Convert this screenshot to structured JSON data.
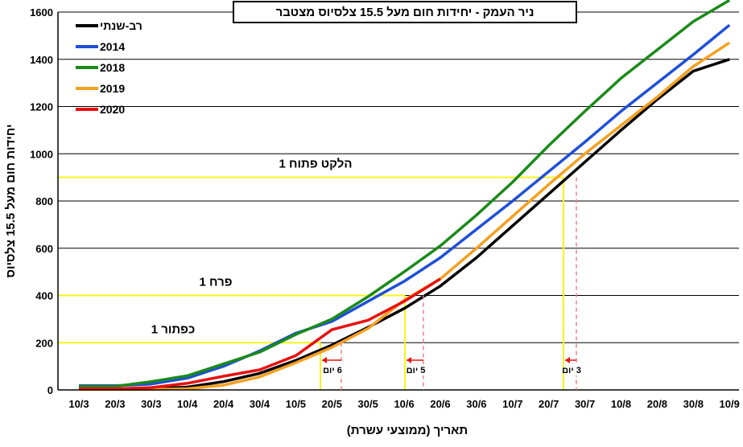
{
  "chart_data": {
    "type": "line",
    "title": "ניר העמק - יחידות חום מעל 15.5 צלסיוס מצטבר",
    "xlabel": "תאריך (ממוצעי עשרת)",
    "ylabel": "יחידות חום מעל 15.5 צלסיוס",
    "ylim": [
      0,
      1600
    ],
    "yticks": [
      0,
      200,
      400,
      600,
      800,
      1000,
      1200,
      1400,
      1600
    ],
    "categories": [
      "10/3",
      "20/3",
      "30/3",
      "10/4",
      "20/4",
      "30/4",
      "10/5",
      "20/5",
      "30/5",
      "10/6",
      "20/6",
      "30/6",
      "10/7",
      "20/7",
      "30/7",
      "10/8",
      "20/8",
      "30/8",
      "10/9"
    ],
    "grid": "horizontal",
    "legend": "top-left",
    "series": [
      {
        "name": "רב-שנתי",
        "color": "#000000",
        "values": [
          5,
          5,
          5,
          12,
          35,
          70,
          125,
          190,
          265,
          345,
          440,
          560,
          695,
          830,
          965,
          1100,
          1230,
          1350,
          1400
        ]
      },
      {
        "name": "2014",
        "color": "#1F4FD8",
        "values": [
          18,
          18,
          25,
          50,
          100,
          165,
          240,
          290,
          375,
          460,
          560,
          680,
          800,
          925,
          1050,
          1180,
          1300,
          1420,
          1545
        ]
      },
      {
        "name": "2018",
        "color": "#1A8A1A",
        "values": [
          15,
          15,
          35,
          60,
          110,
          160,
          235,
          300,
          395,
          500,
          610,
          740,
          880,
          1035,
          1180,
          1320,
          1440,
          1560,
          1650
        ]
      },
      {
        "name": "2019",
        "color": "#F4A020",
        "values": [
          2,
          2,
          2,
          5,
          20,
          55,
          115,
          180,
          260,
          380,
          470,
          600,
          735,
          870,
          1000,
          1120,
          1240,
          1370,
          1470
        ]
      },
      {
        "name": "2020",
        "color": "#E81010",
        "values": [
          5,
          5,
          10,
          28,
          58,
          85,
          145,
          255,
          295,
          375,
          470,
          null,
          null,
          null,
          null,
          null,
          null,
          null,
          null
        ]
      }
    ],
    "thresholds": [
      {
        "label": "כפתור 1",
        "value": 200
      },
      {
        "label": "פרח 1",
        "value": 400
      },
      {
        "label": "הלקט פתוח 1",
        "value": 900
      }
    ],
    "gaps": [
      {
        "label": "6 יום"
      },
      {
        "label": "5 יום"
      },
      {
        "label": "3 יום"
      }
    ]
  }
}
